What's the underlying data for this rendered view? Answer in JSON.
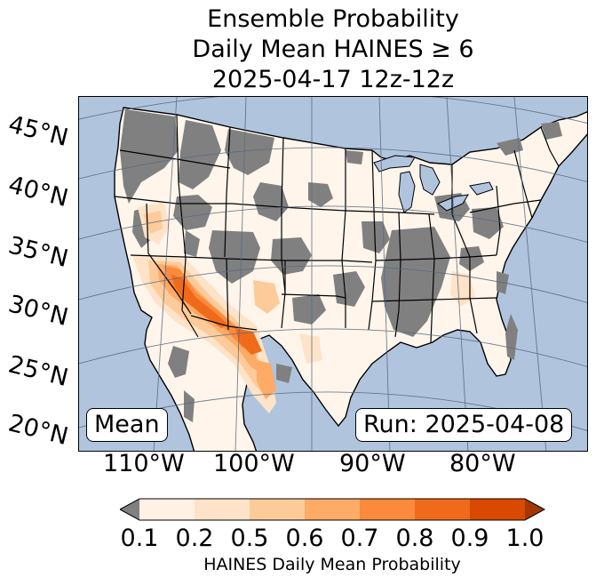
{
  "title": {
    "line1": "Ensemble Probability",
    "line2": "Daily Mean HAINES ≥ 6",
    "line3": "2025-04-17 12z-12z"
  },
  "map": {
    "lat_labels": [
      "45°N",
      "40°N",
      "35°N",
      "30°N",
      "25°N",
      "20°N"
    ],
    "lon_labels": [
      "110°W",
      "100°W",
      "90°W",
      "80°W"
    ],
    "stat_label": "Mean",
    "run_label": "Run: 2025-04-08",
    "colors": {
      "ocean": "#b0c4de",
      "land_low": "#ffffff",
      "masked": "#808080",
      "gridline": "#5a6a80"
    }
  },
  "colorbar": {
    "label": "HAINES Daily Mean Probability",
    "ticks": [
      "0.1",
      "0.2",
      "0.5",
      "0.6",
      "0.7",
      "0.8",
      "0.9",
      "1.0"
    ],
    "colors": [
      "#fff1e3",
      "#fee3c8",
      "#fdcb9a",
      "#fdab67",
      "#fb8a3c",
      "#ef6b1b",
      "#d94901"
    ],
    "under_color": "#808080",
    "over_color": "#a63603"
  }
}
